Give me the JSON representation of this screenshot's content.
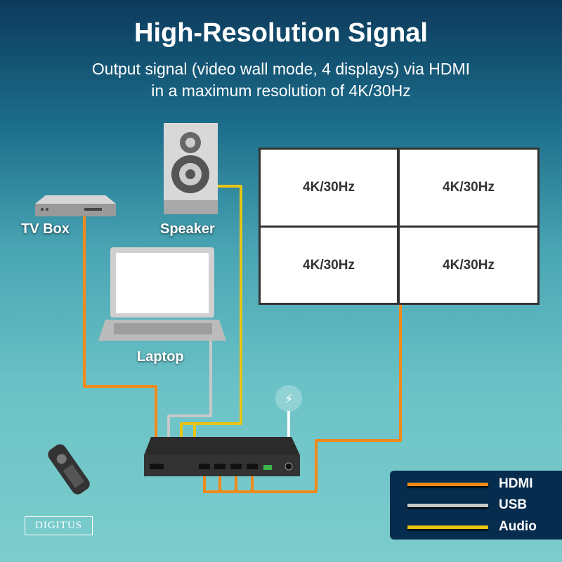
{
  "header": {
    "title": "High-Resolution Signal",
    "subtitle_line1": "Output signal (video wall mode, 4 displays) via HDMI",
    "subtitle_line2": "in a maximum resolution of 4K/30Hz"
  },
  "devices": {
    "tv_box": "TV Box",
    "speaker": "Speaker",
    "laptop": "Laptop"
  },
  "video_wall": {
    "panels": [
      "4K/30Hz",
      "4K/30Hz",
      "4K/30Hz",
      "4K/30Hz"
    ]
  },
  "legend": {
    "items": [
      {
        "label": "HDMI",
        "color": "#f28a1a"
      },
      {
        "label": "USB",
        "color": "#c8c8c8"
      },
      {
        "label": "Audio",
        "color": "#e8c414"
      }
    ]
  },
  "brand": {
    "logo": "DIGITUS"
  },
  "icons": [
    "power-icon",
    "remote-control-icon",
    "speaker-icon",
    "laptop-icon",
    "tv-box-icon",
    "video-switcher-icon"
  ]
}
